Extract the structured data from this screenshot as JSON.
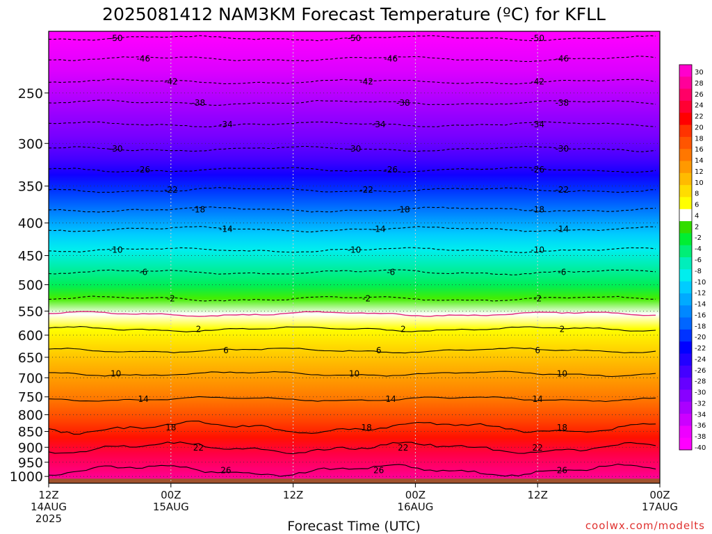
{
  "title": "2025081412 NAM3KM Forecast Temperature (ºC) for KFLL",
  "credit": "coolwx.com/modelts",
  "colors": {
    "ground": "#a0522d",
    "zero_line": "#e0247a",
    "grid": "#cccccc"
  },
  "chart_data": {
    "type": "heatmap",
    "title": "2025081412 NAM3KM Forecast Temperature (ºC) for KFLL",
    "xlabel": "Forecast Time (UTC)",
    "ylabel": "",
    "ylim": [
      1025,
      200
    ],
    "y_scale": "log-pressure",
    "xlim": [
      "2025-08-14 12Z",
      "2025-08-17 00Z"
    ],
    "y_ticks": [
      250,
      300,
      350,
      400,
      450,
      500,
      550,
      600,
      650,
      700,
      750,
      800,
      850,
      900,
      950,
      1000
    ],
    "x_ticks": [
      {
        "time": "2025-08-14 12Z",
        "lines": [
          "12Z",
          "14AUG",
          "2025"
        ]
      },
      {
        "time": "2025-08-15 00Z",
        "lines": [
          "00Z",
          "15AUG"
        ]
      },
      {
        "time": "2025-08-15 12Z",
        "lines": [
          "12Z"
        ]
      },
      {
        "time": "2025-08-16 00Z",
        "lines": [
          "00Z",
          "16AUG"
        ]
      },
      {
        "time": "2025-08-16 12Z",
        "lines": [
          "12Z"
        ]
      },
      {
        "time": "2025-08-17 00Z",
        "lines": [
          "00Z",
          "17AUG"
        ]
      }
    ],
    "grid": true,
    "contour_labels": [
      -50,
      -46,
      -42,
      -38,
      -34,
      -30,
      -26,
      -22,
      -18,
      -14,
      -10,
      -6,
      -2,
      2,
      6,
      10,
      14,
      18,
      22,
      26
    ],
    "isotherm_pressure_hPa": {
      "-50": 205,
      "-46": 221,
      "-42": 240,
      "-38": 259,
      "-34": 280,
      "-30": 306,
      "-26": 330,
      "-22": 355,
      "-18": 381,
      "-14": 409,
      "-10": 441,
      "-6": 478,
      "-2": 526,
      "0": 556,
      "2": 587,
      "6": 634,
      "10": 690,
      "14": 756,
      "18": 838,
      "22": 902,
      "26": 978
    },
    "colorbar": {
      "labels": [
        30,
        28,
        26,
        24,
        22,
        20,
        18,
        16,
        14,
        12,
        10,
        8,
        6,
        4,
        2,
        -2,
        -4,
        -6,
        -8,
        -10,
        -12,
        -14,
        -16,
        -18,
        -20,
        -22,
        -24,
        -26,
        -28,
        -30,
        -32,
        -34,
        -36,
        -38,
        -40
      ],
      "colors": [
        "#ff00cc",
        "#ff0099",
        "#ff0066",
        "#ff0033",
        "#ff0000",
        "#ff3300",
        "#ff5500",
        "#ff7700",
        "#ff9900",
        "#ffbb00",
        "#ffdd00",
        "#ffff00",
        "#ffffff",
        "#33dd00",
        "#00ee33",
        "#00ee77",
        "#00eebb",
        "#00eeee",
        "#00ccff",
        "#00aaff",
        "#0088ff",
        "#0066ff",
        "#0033ff",
        "#0000ff",
        "#2200ff",
        "#4400ff",
        "#6600ff",
        "#8800ff",
        "#aa00ff",
        "#cc00ff",
        "#ee00ff",
        "#ff00ff"
      ]
    }
  }
}
